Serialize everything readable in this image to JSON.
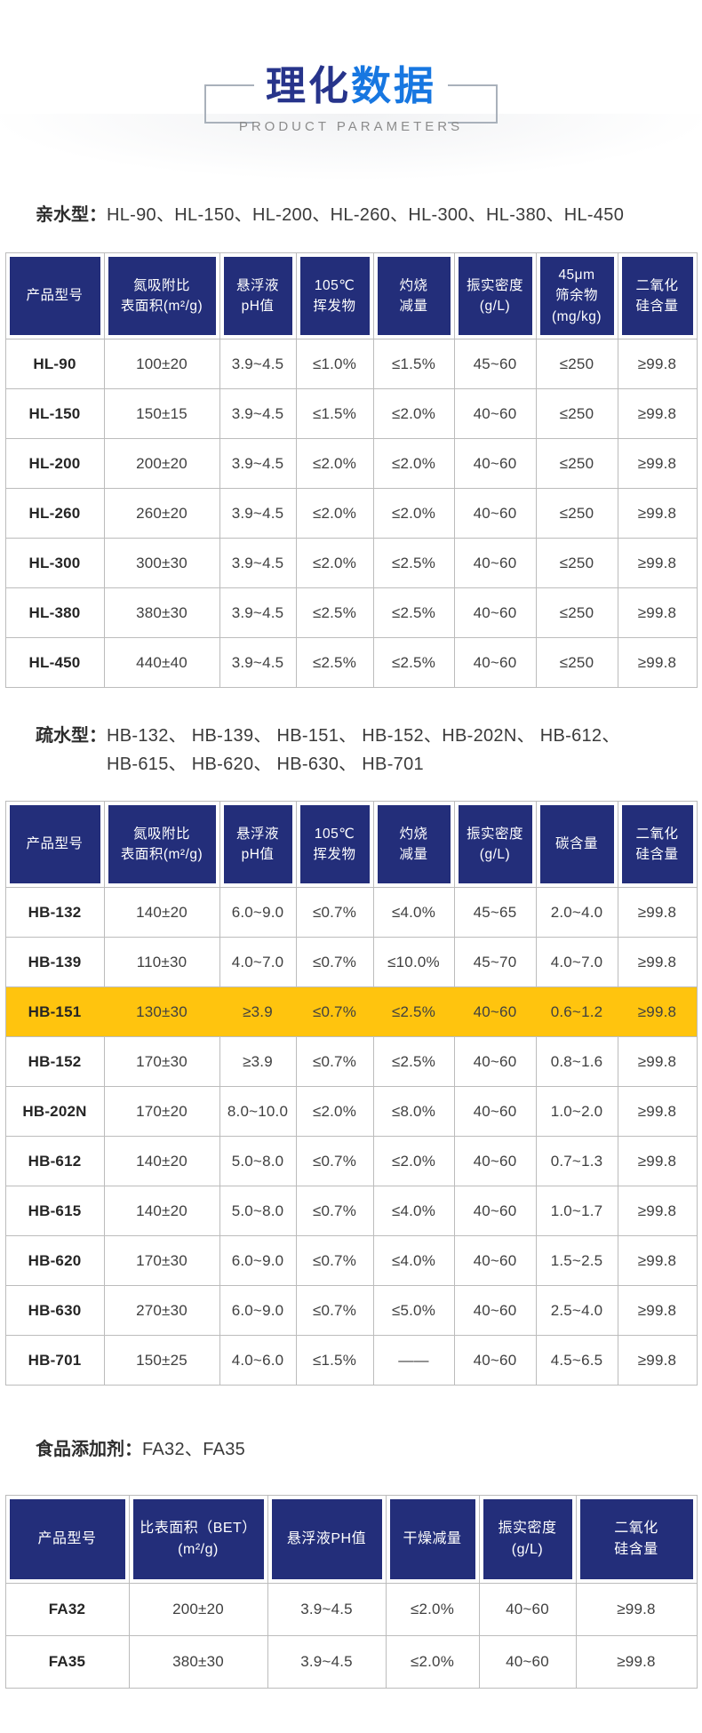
{
  "page": {
    "title_part1": "理化",
    "title_part2": "数据",
    "subtitle": "PRODUCT PARAMETERS"
  },
  "colors": {
    "header_navy": "#232e7a",
    "highlight_yellow": "#ffc40e",
    "title_dark_blue": "#27348b",
    "title_bright_blue": "#1777e1",
    "subtitle_gray": "#8c8c8c",
    "border_gray": "#bcbcbc"
  },
  "sections": [
    {
      "label": "亲水型：",
      "lines": [
        "HL-90、HL-150、HL-200、HL-260、HL-300、HL-380、HL-450"
      ]
    },
    {
      "label": "疏水型：",
      "lines": [
        "HB-132、 HB-139、 HB-151、 HB-152、HB-202N、 HB-612、",
        "HB-615、 HB-620、 HB-630、 HB-701"
      ]
    },
    {
      "label": "食品添加剂：",
      "lines": [
        "FA32、FA35"
      ]
    }
  ],
  "tables": [
    {
      "name": "hydrophilic",
      "headers": [
        "产品型号",
        "氮吸附比\n表面积(m²/g)",
        "悬浮液\npH值",
        "105℃\n挥发物",
        "灼烧\n减量",
        "振实密度\n(g/L)",
        "45μm\n筛余物\n(mg/kg)",
        "二氧化\n硅含量"
      ],
      "rows": [
        [
          "HL-90",
          "100±20",
          "3.9~4.5",
          "≤1.0%",
          "≤1.5%",
          "45~60",
          "≤250",
          "≥99.8"
        ],
        [
          "HL-150",
          "150±15",
          "3.9~4.5",
          "≤1.5%",
          "≤2.0%",
          "40~60",
          "≤250",
          "≥99.8"
        ],
        [
          "HL-200",
          "200±20",
          "3.9~4.5",
          "≤2.0%",
          "≤2.0%",
          "40~60",
          "≤250",
          "≥99.8"
        ],
        [
          "HL-260",
          "260±20",
          "3.9~4.5",
          "≤2.0%",
          "≤2.0%",
          "40~60",
          "≤250",
          "≥99.8"
        ],
        [
          "HL-300",
          "300±30",
          "3.9~4.5",
          "≤2.0%",
          "≤2.5%",
          "40~60",
          "≤250",
          "≥99.8"
        ],
        [
          "HL-380",
          "380±30",
          "3.9~4.5",
          "≤2.5%",
          "≤2.5%",
          "40~60",
          "≤250",
          "≥99.8"
        ],
        [
          "HL-450",
          "440±40",
          "3.9~4.5",
          "≤2.5%",
          "≤2.5%",
          "40~60",
          "≤250",
          "≥99.8"
        ]
      ],
      "highlighted_model": ""
    },
    {
      "name": "hydrophobic",
      "headers": [
        "产品型号",
        "氮吸附比\n表面积(m²/g)",
        "悬浮液\npH值",
        "105℃\n挥发物",
        "灼烧\n减量",
        "振实密度\n(g/L)",
        "碳含量",
        "二氧化\n硅含量"
      ],
      "rows": [
        [
          "HB-132",
          "140±20",
          "6.0~9.0",
          "≤0.7%",
          "≤4.0%",
          "45~65",
          "2.0~4.0",
          "≥99.8"
        ],
        [
          "HB-139",
          "110±30",
          "4.0~7.0",
          "≤0.7%",
          "≤10.0%",
          "45~70",
          "4.0~7.0",
          "≥99.8"
        ],
        [
          "HB-151",
          "130±30",
          "≥3.9",
          "≤0.7%",
          "≤2.5%",
          "40~60",
          "0.6~1.2",
          "≥99.8"
        ],
        [
          "HB-152",
          "170±30",
          "≥3.9",
          "≤0.7%",
          "≤2.5%",
          "40~60",
          "0.8~1.6",
          "≥99.8"
        ],
        [
          "HB-202N",
          "170±20",
          "8.0~10.0",
          "≤2.0%",
          "≤8.0%",
          "40~60",
          "1.0~2.0",
          "≥99.8"
        ],
        [
          "HB-612",
          "140±20",
          "5.0~8.0",
          "≤0.7%",
          "≤2.0%",
          "40~60",
          "0.7~1.3",
          "≥99.8"
        ],
        [
          "HB-615",
          "140±20",
          "5.0~8.0",
          "≤0.7%",
          "≤4.0%",
          "40~60",
          "1.0~1.7",
          "≥99.8"
        ],
        [
          "HB-620",
          "170±30",
          "6.0~9.0",
          "≤0.7%",
          "≤4.0%",
          "40~60",
          "1.5~2.5",
          "≥99.8"
        ],
        [
          "HB-630",
          "270±30",
          "6.0~9.0",
          "≤0.7%",
          "≤5.0%",
          "40~60",
          "2.5~4.0",
          "≥99.8"
        ],
        [
          "HB-701",
          "150±25",
          "4.0~6.0",
          "≤1.5%",
          "——",
          "40~60",
          "4.5~6.5",
          "≥99.8"
        ]
      ],
      "highlighted_model": "HB-151"
    },
    {
      "name": "food-additive",
      "headers": [
        "产品型号",
        "比表面积（BET）\n(m²/g)",
        "悬浮液PH值",
        "干燥减量",
        "振实密度\n(g/L)",
        "二氧化\n硅含量"
      ],
      "rows": [
        [
          "FA32",
          "200±20",
          "3.9~4.5",
          "≤2.0%",
          "40~60",
          "≥99.8"
        ],
        [
          "FA35",
          "380±30",
          "3.9~4.5",
          "≤2.0%",
          "40~60",
          "≥99.8"
        ]
      ],
      "highlighted_model": ""
    }
  ]
}
